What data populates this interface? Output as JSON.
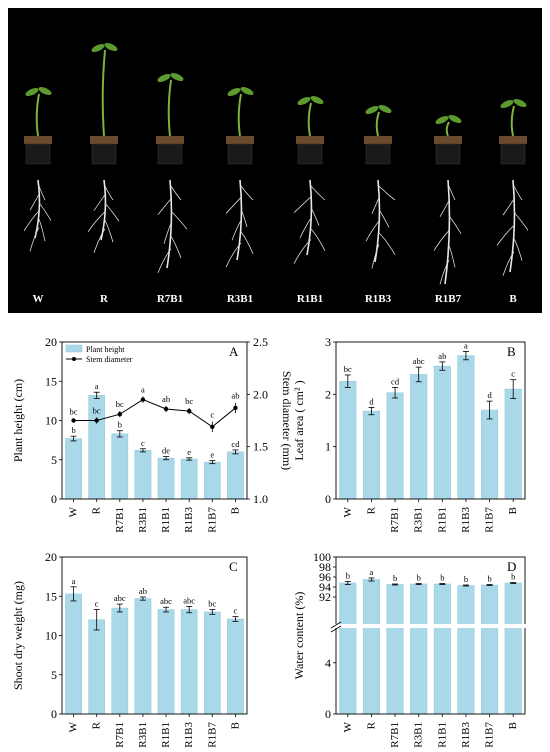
{
  "colors": {
    "bar": "#a9d8e8",
    "bar_edge": "#8fc7dc",
    "line": "#000000",
    "photo_bg": "#000000",
    "photo_label": "#ffffff"
  },
  "photo": {
    "labels": [
      "W",
      "R",
      "R7B1",
      "R3B1",
      "R1B1",
      "R1B3",
      "R1B7",
      "B"
    ],
    "icons": [
      "seedling-in-pot",
      "root-system"
    ]
  },
  "chart_data": [
    {
      "panel": "A",
      "type": "bar",
      "categories": [
        "W",
        "R",
        "R7B1",
        "R3B1",
        "R1B1",
        "R1B3",
        "R1B7",
        "B"
      ],
      "ylabel": "Plant height  (cm)",
      "ylim": [
        0,
        20
      ],
      "yticks": [
        "0",
        "5",
        "10",
        "15",
        "20"
      ],
      "ylabel_right": "Stem diameter  (mm)",
      "ylim_right": [
        1.0,
        2.5
      ],
      "yticks_right": [
        "1.0",
        "1.5",
        "2.0",
        "2.5"
      ],
      "legend_position": "top-left",
      "series": [
        {
          "name": "Plant height",
          "type": "bar",
          "values": [
            7.7,
            13.2,
            8.3,
            6.2,
            5.2,
            5.1,
            4.7,
            6.0
          ],
          "errors": [
            0.3,
            0.4,
            0.4,
            0.2,
            0.2,
            0.15,
            0.2,
            0.25
          ],
          "letters": [
            "b",
            "a",
            "b",
            "c",
            "de",
            "e",
            "e",
            "cd"
          ]
        },
        {
          "name": "Stem diameter",
          "type": "line",
          "axis": "right",
          "values": [
            1.75,
            1.75,
            1.81,
            1.95,
            1.86,
            1.84,
            1.69,
            1.87
          ],
          "errors": [
            0.02,
            0.03,
            0.03,
            0.03,
            0.03,
            0.03,
            0.05,
            0.05
          ],
          "letters": [
            "bc",
            "bc",
            "bc",
            "a",
            "ab",
            "bc",
            "c",
            "ab"
          ]
        }
      ]
    },
    {
      "panel": "B",
      "type": "bar",
      "categories": [
        "W",
        "R",
        "R7B1",
        "R3B1",
        "R1B1",
        "R1B3",
        "R1B7",
        "B"
      ],
      "ylabel": "Leaf area  ( cm² )",
      "ylim": [
        0,
        3
      ],
      "yticks": [
        "0",
        "1",
        "2",
        "3"
      ],
      "series": [
        {
          "values": [
            2.25,
            1.68,
            2.03,
            2.38,
            2.54,
            2.74,
            1.7,
            2.1
          ],
          "errors": [
            0.12,
            0.07,
            0.1,
            0.14,
            0.08,
            0.08,
            0.17,
            0.18
          ],
          "letters": [
            "bc",
            "d",
            "cd",
            "abc",
            "ab",
            "a",
            "d",
            "c"
          ]
        }
      ]
    },
    {
      "panel": "C",
      "type": "bar",
      "categories": [
        "W",
        "R",
        "R7B1",
        "R3B1",
        "R1B1",
        "R1B3",
        "R1B7",
        "B"
      ],
      "ylabel": "Shoot dry weight (mg)",
      "ylim": [
        0,
        20
      ],
      "yticks": [
        "0",
        "5",
        "10",
        "15",
        "20"
      ],
      "series": [
        {
          "values": [
            15.3,
            12.0,
            13.5,
            14.7,
            13.3,
            13.3,
            13.0,
            12.1
          ],
          "errors": [
            0.9,
            1.3,
            0.5,
            0.2,
            0.3,
            0.4,
            0.3,
            0.3
          ],
          "letters": [
            "a",
            "c",
            "abc",
            "ab",
            "abc",
            "abc",
            "bc",
            "c"
          ]
        }
      ]
    },
    {
      "panel": "D",
      "type": "bar",
      "categories": [
        "W",
        "R",
        "R7B1",
        "R3B1",
        "R1B1",
        "R1B3",
        "R1B7",
        "B"
      ],
      "ylabel": "Water content (%)",
      "ylim": [
        0,
        100
      ],
      "axis_break": [
        5,
        90
      ],
      "yticks_lower": [
        "0",
        "4"
      ],
      "yticks_upper": [
        "92",
        "94",
        "96",
        "98",
        "100"
      ],
      "series": [
        {
          "values": [
            94.8,
            95.5,
            94.5,
            94.6,
            94.6,
            94.3,
            94.4,
            94.8
          ],
          "errors": [
            0.3,
            0.3,
            0.1,
            0.1,
            0.1,
            0.1,
            0.1,
            0.1
          ],
          "letters": [
            "b",
            "a",
            "b",
            "b",
            "b",
            "b",
            "b",
            "b"
          ]
        }
      ]
    }
  ]
}
